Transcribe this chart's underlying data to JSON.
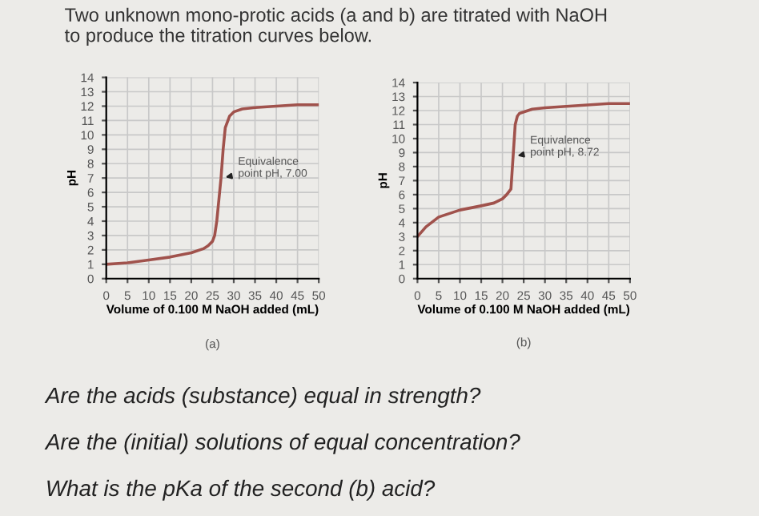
{
  "chart_data": [
    {
      "type": "line",
      "xlabel": "Volume of 0.100 M NaOH added (mL)",
      "ylabel": "pH",
      "series": [
        {
          "color": "#a0524c",
          "x": [
            0,
            5,
            10,
            15,
            20,
            23,
            24,
            25,
            25.5,
            26,
            26.5,
            27,
            27.5,
            28,
            29,
            30,
            32,
            35,
            40,
            45,
            50
          ],
          "values": [
            1.0,
            1.1,
            1.3,
            1.5,
            1.8,
            2.1,
            2.3,
            2.6,
            3.0,
            4.0,
            5.5,
            7.0,
            9.0,
            10.5,
            11.3,
            11.6,
            11.8,
            11.9,
            12.0,
            12.1,
            12.1
          ]
        }
      ],
      "xlim": [
        0,
        50
      ],
      "xticks": [
        0,
        5,
        10,
        15,
        20,
        25,
        30,
        35,
        40,
        45,
        50
      ],
      "ylim": [
        0,
        14
      ],
      "yticks": [
        0,
        1,
        2,
        3,
        4,
        5,
        6,
        7,
        8,
        9,
        10,
        11,
        12,
        13,
        14
      ],
      "grid": true,
      "legend": false,
      "annotations": [
        "(a)",
        {
          "text": "Equivalence\npoint pH, 7.00",
          "x": 27,
          "y": 7.0
        },
        "Two unknown mono-protic acids (a and b) are titrated with NaOH\nto produce the titration curves below."
      ]
    },
    {
      "type": "line",
      "xlabel": "Volume of 0.100 M NaOH added (mL)",
      "ylabel": "pH",
      "series": [
        {
          "color": "#a0524c",
          "x": [
            0,
            2,
            5,
            8,
            10,
            15,
            18,
            20,
            21,
            22,
            22.5,
            23,
            23.5,
            24,
            25,
            27,
            30,
            35,
            40,
            45,
            50
          ],
          "values": [
            3.0,
            3.7,
            4.4,
            4.7,
            4.9,
            5.2,
            5.4,
            5.7,
            6.0,
            6.4,
            8.7,
            11.0,
            11.6,
            11.8,
            11.9,
            12.1,
            12.2,
            12.3,
            12.4,
            12.5,
            12.5
          ]
        }
      ],
      "xlim": [
        0,
        50
      ],
      "xticks": [
        0,
        5,
        10,
        15,
        20,
        25,
        30,
        35,
        40,
        45,
        50
      ],
      "ylim": [
        0,
        14
      ],
      "yticks": [
        0,
        1,
        2,
        3,
        4,
        5,
        6,
        7,
        8,
        9,
        10,
        11,
        12,
        13,
        14
      ],
      "grid": true,
      "legend": false,
      "annotations": [
        "(b)",
        {
          "text": "Equivalence\npoint pH, 8.72",
          "x": 22.5,
          "y": 8.72
        },
        "Are the acids (substance) equal in strength?",
        "Are the (initial) solutions of equal concentration?",
        "What is the pKa of the second (b) acid?"
      ]
    }
  ]
}
